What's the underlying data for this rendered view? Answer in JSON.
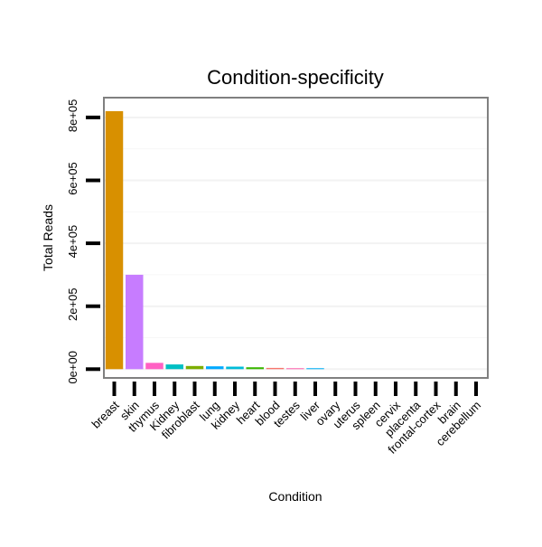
{
  "chart_data": {
    "type": "bar",
    "title": "Condition-specificity",
    "xlabel": "Condition",
    "ylabel": "Total Reads",
    "categories": [
      "breast",
      "skin",
      "thymus",
      "Kidney",
      "fibroblast",
      "lung",
      "kidney",
      "heart",
      "blood",
      "testes",
      "liver",
      "ovary",
      "uterus",
      "spleen",
      "cervix",
      "placenta",
      "frontal-cortex",
      "brain",
      "cerebellum"
    ],
    "values": [
      820000,
      300000,
      20000,
      15000,
      10000,
      9000,
      8000,
      6000,
      4000,
      3000,
      3000,
      0,
      0,
      0,
      0,
      0,
      0,
      0,
      0
    ],
    "colors": [
      "#D89000",
      "#C77CFF",
      "#FF61C3",
      "#00BFC4",
      "#7CAE00",
      "#00A9FF",
      "#00BCD8",
      "#39B600",
      "#F8766D",
      "#FF64B0",
      "#00B0F6",
      "#E76BF3",
      "#9590FF",
      "#00BA38",
      "#A3A500",
      "#D39200",
      "#00C19A",
      "#619CFF",
      "#DB8E00"
    ],
    "yticks": [
      0,
      200000,
      400000,
      600000,
      800000
    ],
    "ytick_labels": [
      "0e+00",
      "2e+05",
      "4e+05",
      "6e+05",
      "8e+05"
    ],
    "ylim": [
      -25000,
      860000
    ],
    "grid": true,
    "legend": "none"
  }
}
